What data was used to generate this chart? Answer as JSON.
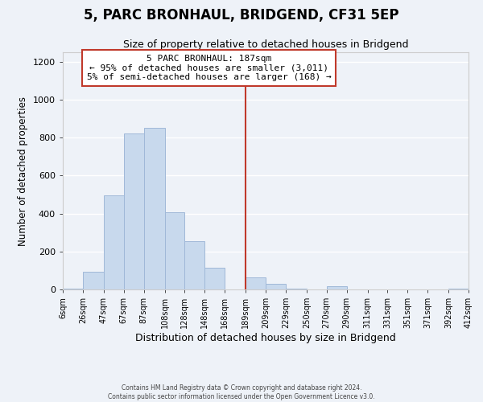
{
  "title": "5, PARC BRONHAUL, BRIDGEND, CF31 5EP",
  "subtitle": "Size of property relative to detached houses in Bridgend",
  "xlabel": "Distribution of detached houses by size in Bridgend",
  "ylabel": "Number of detached properties",
  "bar_heights": [
    5,
    95,
    495,
    820,
    850,
    405,
    255,
    115,
    0,
    65,
    30,
    5,
    0,
    15,
    0,
    0,
    0,
    0,
    0,
    5
  ],
  "bar_color": "#c8d9ed",
  "bar_edgecolor": "#a0b8d8",
  "tick_labels": [
    "6sqm",
    "26sqm",
    "47sqm",
    "67sqm",
    "87sqm",
    "108sqm",
    "128sqm",
    "148sqm",
    "168sqm",
    "189sqm",
    "209sqm",
    "229sqm",
    "250sqm",
    "270sqm",
    "290sqm",
    "311sqm",
    "331sqm",
    "351sqm",
    "371sqm",
    "392sqm",
    "412sqm"
  ],
  "vline_x": 189,
  "vline_color": "#c0392b",
  "ylim": [
    0,
    1250
  ],
  "yticks": [
    0,
    200,
    400,
    600,
    800,
    1000,
    1200
  ],
  "annotation_title": "5 PARC BRONHAUL: 187sqm",
  "annotation_line1": "← 95% of detached houses are smaller (3,011)",
  "annotation_line2": "5% of semi-detached houses are larger (168) →",
  "footer_line1": "Contains HM Land Registry data © Crown copyright and database right 2024.",
  "footer_line2": "Contains public sector information licensed under the Open Government Licence v3.0.",
  "background_color": "#eef2f8",
  "grid_color": "#ffffff",
  "title_fontsize": 12,
  "subtitle_fontsize": 9,
  "annotation_box_color": "#ffffff",
  "annotation_border_color": "#c0392b"
}
